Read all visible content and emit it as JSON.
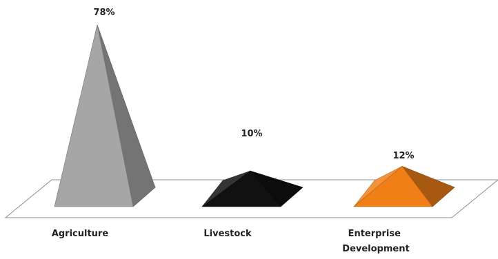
{
  "chart_data": {
    "type": "bar",
    "style": "3d-pyramid",
    "categories": [
      "Agriculture",
      "Livestock",
      "Enterprise Development"
    ],
    "category_lines": [
      [
        "Agriculture"
      ],
      [
        "Livestock"
      ],
      [
        "Enterprise",
        "Development"
      ]
    ],
    "values": [
      78,
      10,
      12
    ],
    "labels": [
      "78%",
      "10%",
      "12%"
    ],
    "unit": "%",
    "ylim": [
      0,
      78
    ],
    "grid": false,
    "legend": "none",
    "colors": [
      "#a6a6a6",
      "#111111",
      "#f07f18"
    ]
  }
}
